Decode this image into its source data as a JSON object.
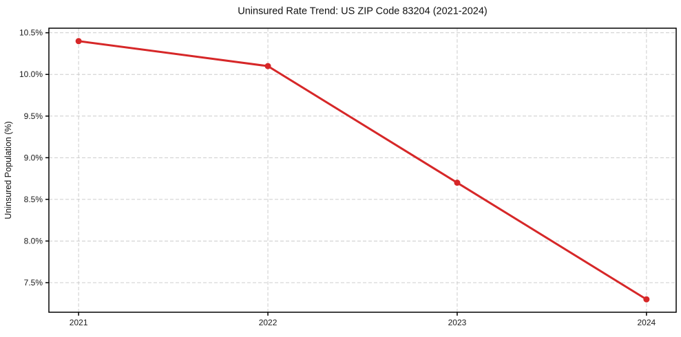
{
  "chart_data": {
    "type": "line",
    "title": "Uninsured Rate Trend: US ZIP Code 83204 (2021-2024)",
    "xlabel": "",
    "ylabel": "Uninsured Population (%)",
    "x": [
      2021,
      2022,
      2023,
      2024
    ],
    "x_tick_labels": [
      "2021",
      "2022",
      "2023",
      "2024"
    ],
    "y_ticks": [
      7.5,
      8.0,
      8.5,
      9.0,
      9.5,
      10.0,
      10.5
    ],
    "y_tick_labels": [
      "7.5%",
      "8.0%",
      "8.5%",
      "9.0%",
      "9.5%",
      "10.0%",
      "10.5%"
    ],
    "series": [
      {
        "values": [
          10.4,
          10.1,
          8.7,
          7.3
        ],
        "color": "#d62728",
        "marker": "circle"
      }
    ],
    "xlim": [
      2020.843,
      2024.157
    ],
    "ylim": [
      7.145,
      10.555
    ],
    "grid": true,
    "grid_color": "#cccccc",
    "grid_dash": "5 3",
    "axis_color": "#000000",
    "legend_position": "none"
  }
}
